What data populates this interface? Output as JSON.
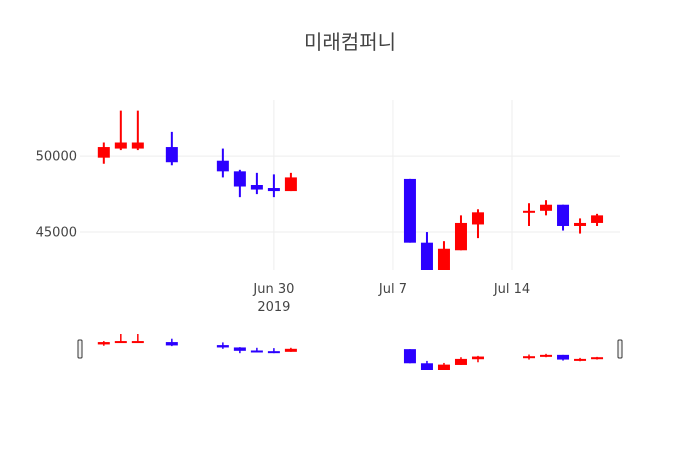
{
  "chart_data": {
    "type": "candlestick",
    "title": "미래컴퍼니",
    "xlabel": "",
    "ylabel": "",
    "x_ticks": [
      {
        "date": "2019-06-30",
        "label": "Jun 30",
        "sublabel": "2019"
      },
      {
        "date": "2019-07-07",
        "label": "Jul 7",
        "sublabel": ""
      },
      {
        "date": "2019-07-14",
        "label": "Jul 14",
        "sublabel": ""
      }
    ],
    "y_ticks": [
      {
        "value": 45000,
        "label": "45000"
      },
      {
        "value": 50000,
        "label": "50000"
      }
    ],
    "xlim": [
      "2019-06-19",
      "2019-07-20"
    ],
    "ylim": [
      42500,
      53700
    ],
    "grid": true,
    "rangeslider": true,
    "increasing_color": "#ff0000",
    "decreasing_color": "#2b00ff",
    "candles": [
      {
        "date": "2019-06-20",
        "open": 49900,
        "high": 50900,
        "low": 49500,
        "close": 50600
      },
      {
        "date": "2019-06-21",
        "open": 50500,
        "high": 53000,
        "low": 50400,
        "close": 50900
      },
      {
        "date": "2019-06-22",
        "open": 50500,
        "high": 53000,
        "low": 50400,
        "close": 50900
      },
      {
        "date": "2019-06-24",
        "open": 50600,
        "high": 51600,
        "low": 49400,
        "close": 49600
      },
      {
        "date": "2019-06-27",
        "open": 49700,
        "high": 50500,
        "low": 48600,
        "close": 49000
      },
      {
        "date": "2019-06-28",
        "open": 49000,
        "high": 49100,
        "low": 47300,
        "close": 48000
      },
      {
        "date": "2019-06-29",
        "open": 48100,
        "high": 48900,
        "low": 47500,
        "close": 47800
      },
      {
        "date": "2019-06-30",
        "open": 47900,
        "high": 48800,
        "low": 47300,
        "close": 47700
      },
      {
        "date": "2019-07-01",
        "open": 47700,
        "high": 48900,
        "low": 47700,
        "close": 48600
      },
      {
        "date": "2019-07-08",
        "open": 48500,
        "high": 48500,
        "low": 44300,
        "close": 44300
      },
      {
        "date": "2019-07-09",
        "open": 44300,
        "high": 45000,
        "low": 42300,
        "close": 42300
      },
      {
        "date": "2019-07-10",
        "open": 42300,
        "high": 44400,
        "low": 42300,
        "close": 43900
      },
      {
        "date": "2019-07-11",
        "open": 43800,
        "high": 46100,
        "low": 43800,
        "close": 45600
      },
      {
        "date": "2019-07-12",
        "open": 45500,
        "high": 46500,
        "low": 44600,
        "close": 46300
      },
      {
        "date": "2019-07-15",
        "open": 46300,
        "high": 46900,
        "low": 45400,
        "close": 46400
      },
      {
        "date": "2019-07-16",
        "open": 46400,
        "high": 47100,
        "low": 46100,
        "close": 46800
      },
      {
        "date": "2019-07-17",
        "open": 46800,
        "high": 46800,
        "low": 45100,
        "close": 45400
      },
      {
        "date": "2019-07-18",
        "open": 45400,
        "high": 45900,
        "low": 44900,
        "close": 45600
      },
      {
        "date": "2019-07-19",
        "open": 45600,
        "high": 46200,
        "low": 45400,
        "close": 46100
      }
    ]
  }
}
